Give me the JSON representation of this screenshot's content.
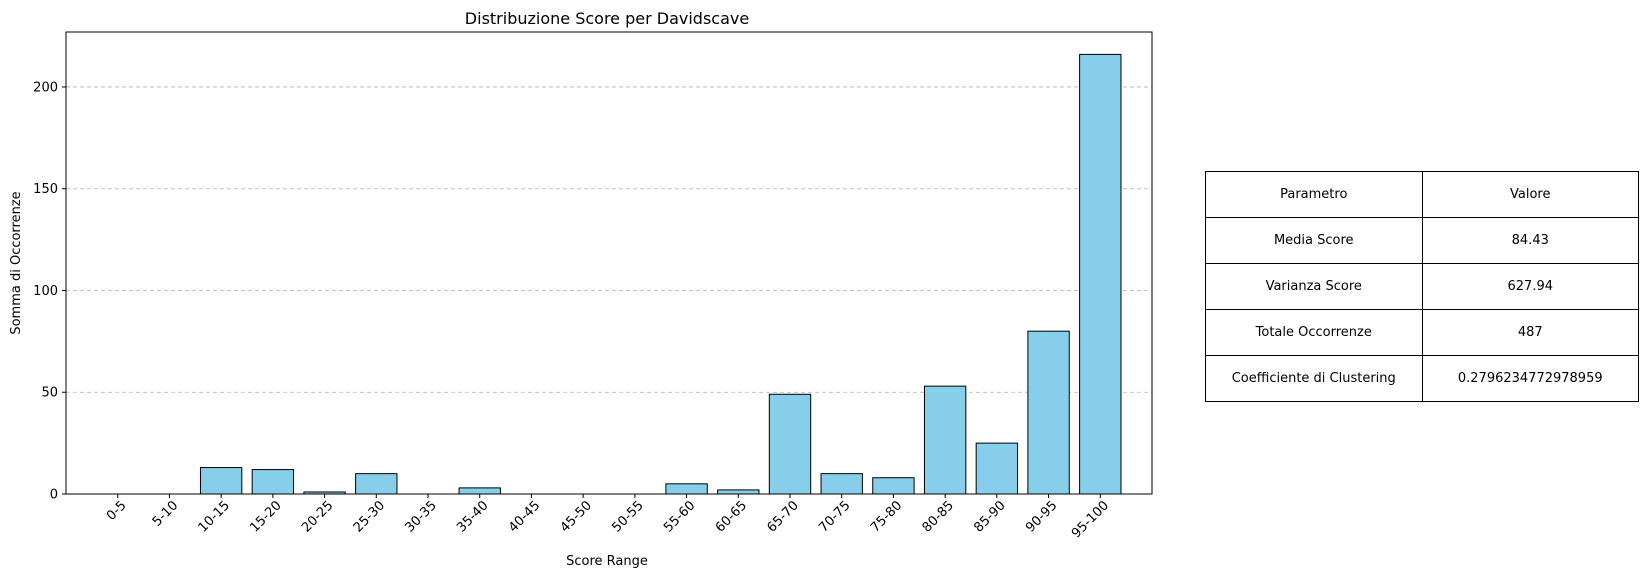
{
  "chart_data": {
    "type": "bar",
    "title": "Distribuzione Score per Davidscave",
    "xlabel": "Score Range",
    "ylabel": "Somma di Occorrenze",
    "categories": [
      "0-5",
      "5-10",
      "10-15",
      "15-20",
      "20-25",
      "25-30",
      "30-35",
      "35-40",
      "40-45",
      "45-50",
      "50-55",
      "55-60",
      "60-65",
      "65-70",
      "70-75",
      "75-80",
      "80-85",
      "85-90",
      "90-95",
      "95-100"
    ],
    "values": [
      0,
      0,
      13,
      12,
      1,
      10,
      0,
      3,
      0,
      0,
      0,
      5,
      2,
      49,
      10,
      8,
      53,
      25,
      80,
      216
    ],
    "ylim": [
      0,
      227
    ],
    "yticks": [
      0,
      50,
      100,
      150,
      200
    ],
    "grid": "y",
    "bar_color": "#87ceeb",
    "edge_color": "#000000"
  },
  "table": {
    "header": [
      "Parametro",
      "Valore"
    ],
    "rows": [
      [
        "Media Score",
        "84.43"
      ],
      [
        "Varianza Score",
        "627.94"
      ],
      [
        "Totale Occorrenze",
        "487"
      ],
      [
        "Coefficiente di Clustering",
        "0.2796234772978959"
      ]
    ]
  }
}
